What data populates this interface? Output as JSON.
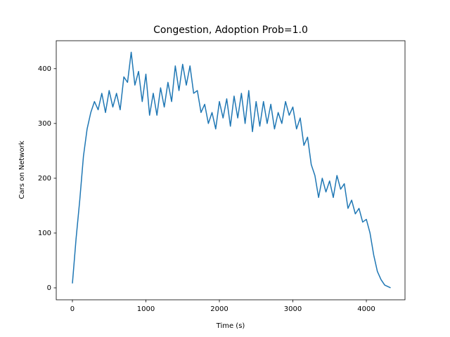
{
  "chart_data": {
    "type": "line",
    "title": "Congestion, Adoption Prob=1.0",
    "x_label": "Time (s)",
    "y_label": "Cars on Network",
    "x": [
      0,
      50,
      100,
      150,
      200,
      250,
      300,
      350,
      400,
      450,
      500,
      550,
      600,
      650,
      700,
      750,
      800,
      850,
      900,
      950,
      1000,
      1050,
      1100,
      1150,
      1200,
      1250,
      1300,
      1350,
      1400,
      1450,
      1500,
      1550,
      1600,
      1650,
      1700,
      1750,
      1800,
      1850,
      1900,
      1950,
      2000,
      2050,
      2100,
      2150,
      2200,
      2250,
      2300,
      2350,
      2400,
      2450,
      2500,
      2550,
      2600,
      2650,
      2700,
      2750,
      2800,
      2850,
      2900,
      2950,
      3000,
      3050,
      3100,
      3150,
      3200,
      3250,
      3300,
      3350,
      3400,
      3450,
      3500,
      3550,
      3600,
      3650,
      3700,
      3750,
      3800,
      3850,
      3900,
      3950,
      4000,
      4050,
      4100,
      4150,
      4200,
      4250,
      4330
    ],
    "values": [
      8,
      90,
      160,
      240,
      290,
      320,
      340,
      325,
      355,
      320,
      360,
      330,
      355,
      325,
      385,
      375,
      430,
      370,
      395,
      340,
      390,
      315,
      355,
      315,
      365,
      330,
      375,
      340,
      405,
      360,
      408,
      370,
      405,
      355,
      360,
      320,
      335,
      300,
      320,
      290,
      340,
      310,
      345,
      295,
      350,
      310,
      355,
      300,
      360,
      285,
      340,
      295,
      340,
      300,
      335,
      290,
      320,
      300,
      340,
      315,
      330,
      290,
      310,
      260,
      275,
      225,
      205,
      165,
      200,
      175,
      195,
      165,
      205,
      180,
      190,
      145,
      160,
      135,
      145,
      120,
      125,
      100,
      60,
      30,
      15,
      5,
      0
    ],
    "color": "#1f77b4",
    "xlim": [
      -220,
      4526
    ],
    "ylim": [
      -21.8,
      451
    ],
    "xticks": [
      0,
      1000,
      2000,
      3000,
      4000
    ],
    "yticks": [
      0,
      100,
      200,
      300,
      400
    ]
  }
}
